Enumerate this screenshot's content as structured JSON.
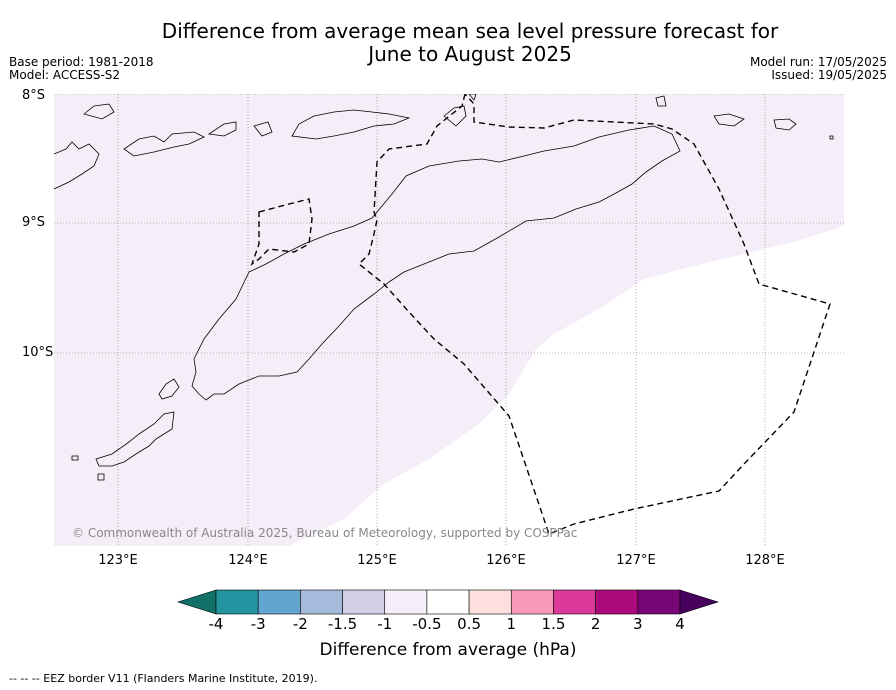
{
  "title_line1": "Difference from average mean sea level pressure forecast for",
  "title_line2": "June to August 2025",
  "base_period": "Base period: 1981-2018",
  "model": "Model: ACCESS-S2",
  "model_run": "Model run: 17/05/2025",
  "issued": "Issued: 19/05/2025",
  "lat_labels": [
    "8°S",
    "9°S",
    "10°S"
  ],
  "lon_labels": [
    "123°E",
    "124°E",
    "125°E",
    "126°E",
    "127°E",
    "128°E"
  ],
  "copyright": "© Commonwealth of Australia 2025, Bureau of Meteorology, supported by COSPPac",
  "colorbar": {
    "ticks": [
      "-4",
      "-3",
      "-2",
      "-1.5",
      "-1",
      "-0.5",
      "0.5",
      "1",
      "1.5",
      "2",
      "3",
      "4"
    ],
    "colors": [
      "#117068",
      "#2394a0",
      "#62a6cf",
      "#a6bbdc",
      "#d0cfe5",
      "#f5eef8",
      "#ffffff",
      "#fde0dd",
      "#f99bb8",
      "#dc3a9a",
      "#ad0a7d",
      "#780676",
      "#48005f"
    ],
    "label": "Difference from average (hPa)"
  },
  "footer": "--  --  -- EEZ border V11 (Flanders Marine Institute, 2019)."
}
